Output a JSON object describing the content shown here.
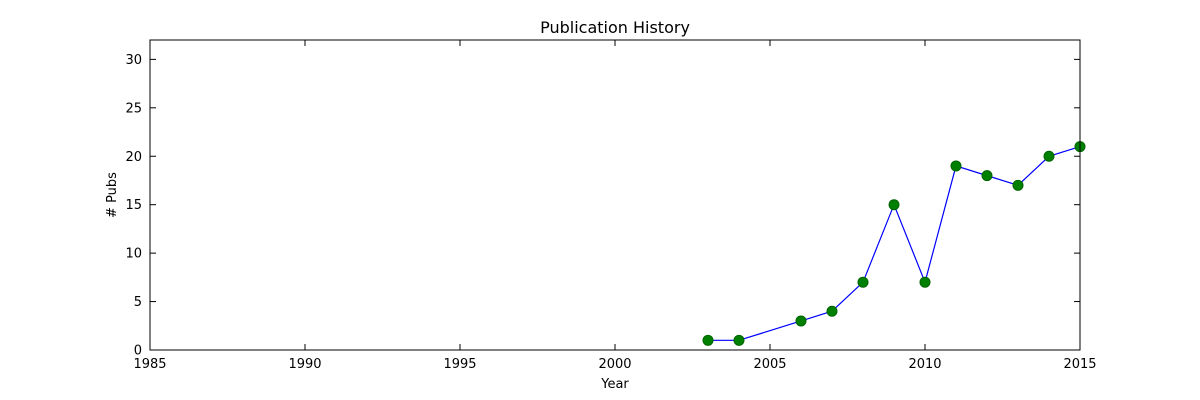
{
  "chart_data": {
    "type": "line",
    "title": "Publication History",
    "xlabel": "Year",
    "ylabel": "# Pubs",
    "xlim": [
      1985,
      2015
    ],
    "ylim": [
      0,
      32
    ],
    "xticks": [
      1985,
      1990,
      1995,
      2000,
      2005,
      2010,
      2015
    ],
    "yticks": [
      0,
      5,
      10,
      15,
      20,
      25,
      30
    ],
    "grid": false,
    "colors": {
      "line": "#0000ff",
      "marker": "#008000"
    },
    "series": [
      {
        "x": [
          2003,
          2004,
          2006,
          2007,
          2008,
          2009,
          2010,
          2011,
          2012,
          2013,
          2014,
          2015
        ],
        "y": [
          1,
          1,
          3,
          4,
          7,
          15,
          7,
          19,
          18,
          17,
          20,
          21
        ]
      }
    ]
  }
}
